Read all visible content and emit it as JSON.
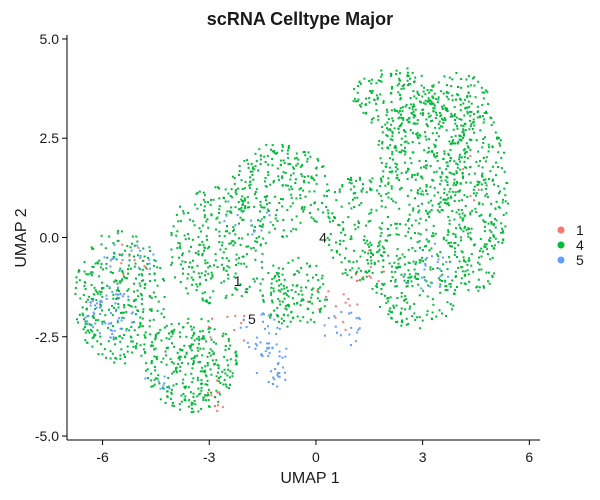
{
  "chart_data": {
    "type": "scatter",
    "title": "scRNA Celltype Major",
    "xlabel": "UMAP 1",
    "ylabel": "UMAP 2",
    "xlim": [
      -7,
      6.3
    ],
    "ylim": [
      -5.1,
      5.1
    ],
    "xticks": [
      -6,
      -3,
      0,
      3,
      6
    ],
    "xtick_labels": [
      "-6",
      "-3",
      "0",
      "3",
      "6"
    ],
    "yticks": [
      -5,
      -2.5,
      0,
      2.5,
      5
    ],
    "ytick_labels": [
      "-5.0",
      "-2.5",
      "0.0",
      "2.5",
      "5.0"
    ],
    "grid": false,
    "legend_position": "right",
    "legend": [
      {
        "label": "1",
        "color": "#F8766D"
      },
      {
        "label": "4",
        "color": "#00BA38"
      },
      {
        "label": "5",
        "color": "#619CFF"
      }
    ],
    "cluster_labels": [
      {
        "text": "4",
        "x": 0.2,
        "y": 0.0
      },
      {
        "text": "1",
        "x": -2.2,
        "y": -1.1
      },
      {
        "text": "5",
        "x": -1.8,
        "y": -2.05
      }
    ],
    "series": [
      {
        "name": "1",
        "color": "#F8766D",
        "approx_count": 60,
        "regions": [
          {
            "cx": -2.8,
            "cy": -4.0,
            "rx": 0.35,
            "ry": 0.4,
            "n": 10
          },
          {
            "cx": 0.5,
            "cy": -1.8,
            "rx": 0.8,
            "ry": 0.6,
            "n": 14
          },
          {
            "cx": -5.2,
            "cy": -0.6,
            "rx": 0.5,
            "ry": 0.5,
            "n": 10
          },
          {
            "cx": 1.5,
            "cy": -0.8,
            "rx": 0.5,
            "ry": 0.5,
            "n": 10
          },
          {
            "cx": -2.5,
            "cy": -2.3,
            "rx": 0.6,
            "ry": 0.6,
            "n": 10
          },
          {
            "cx": 4.5,
            "cy": 1.5,
            "rx": 0.6,
            "ry": 0.6,
            "n": 6
          }
        ]
      },
      {
        "name": "4",
        "color": "#00BA38",
        "approx_count": 2600,
        "regions": [
          {
            "cx": -5.5,
            "cy": -1.5,
            "rx": 1.3,
            "ry": 1.7,
            "n": 330
          },
          {
            "cx": -3.5,
            "cy": -3.2,
            "rx": 1.3,
            "ry": 1.2,
            "n": 300
          },
          {
            "cx": -2.8,
            "cy": -0.2,
            "rx": 1.4,
            "ry": 1.5,
            "n": 260
          },
          {
            "cx": -1.0,
            "cy": 1.2,
            "rx": 1.4,
            "ry": 1.2,
            "n": 240
          },
          {
            "cx": -0.6,
            "cy": -1.4,
            "rx": 1.0,
            "ry": 0.9,
            "n": 140
          },
          {
            "cx": 1.2,
            "cy": 0.3,
            "rx": 0.9,
            "ry": 1.4,
            "n": 150
          },
          {
            "cx": 3.0,
            "cy": 2.0,
            "rx": 1.3,
            "ry": 1.5,
            "n": 320
          },
          {
            "cx": 4.5,
            "cy": 1.0,
            "rx": 0.9,
            "ry": 2.4,
            "n": 340
          },
          {
            "cx": 2.8,
            "cy": -0.9,
            "rx": 1.4,
            "ry": 1.4,
            "n": 260
          },
          {
            "cx": 2.2,
            "cy": 3.5,
            "rx": 1.2,
            "ry": 0.8,
            "n": 160
          },
          {
            "cx": 4.0,
            "cy": 3.5,
            "rx": 0.9,
            "ry": 0.7,
            "n": 100
          }
        ]
      },
      {
        "name": "5",
        "color": "#619CFF",
        "approx_count": 200,
        "regions": [
          {
            "cx": -5.8,
            "cy": -1.9,
            "rx": 0.7,
            "ry": 0.7,
            "n": 55
          },
          {
            "cx": -1.2,
            "cy": -3.2,
            "rx": 0.5,
            "ry": 0.6,
            "n": 35
          },
          {
            "cx": -1.6,
            "cy": -2.4,
            "rx": 0.6,
            "ry": 0.5,
            "n": 25
          },
          {
            "cx": -5.2,
            "cy": -0.5,
            "rx": 0.8,
            "ry": 0.4,
            "n": 22
          },
          {
            "cx": 0.8,
            "cy": -2.3,
            "rx": 0.6,
            "ry": 0.5,
            "n": 20
          },
          {
            "cx": 3.0,
            "cy": -0.8,
            "rx": 0.8,
            "ry": 0.8,
            "n": 22
          },
          {
            "cx": -2.0,
            "cy": 0.5,
            "rx": 0.8,
            "ry": 0.5,
            "n": 15
          },
          {
            "cx": -4.5,
            "cy": -3.8,
            "rx": 0.4,
            "ry": 0.4,
            "n": 8
          }
        ]
      }
    ]
  }
}
